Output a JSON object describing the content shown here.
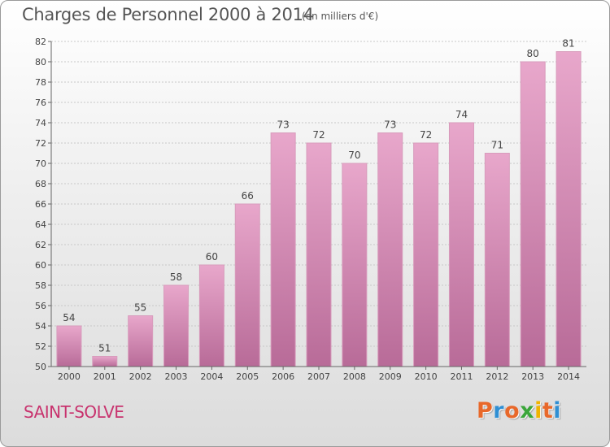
{
  "header": {
    "title": "Charges de Personnel 2000 à 2014",
    "unit": "(en milliers d'€)"
  },
  "footer": {
    "commune": "SAINT-SOLVE",
    "logo": {
      "text": "Proxiti",
      "colors": [
        "#e8682a",
        "#2f8fd3",
        "#e8682a",
        "#3aa63a",
        "#f0b400",
        "#e8682a",
        "#2f8fd3"
      ]
    }
  },
  "chart_data": {
    "type": "bar",
    "categories": [
      "2000",
      "2001",
      "2002",
      "2003",
      "2004",
      "2005",
      "2006",
      "2007",
      "2008",
      "2009",
      "2010",
      "2011",
      "2012",
      "2013",
      "2014"
    ],
    "values": [
      54,
      51,
      55,
      58,
      60,
      66,
      73,
      72,
      70,
      73,
      72,
      74,
      71,
      80,
      81
    ],
    "ylim": [
      50,
      82
    ],
    "yticks": [
      50,
      52,
      54,
      56,
      58,
      60,
      62,
      64,
      66,
      68,
      70,
      72,
      74,
      76,
      78,
      80,
      82
    ],
    "grid": true,
    "bar_color_top": "#e8a7cb",
    "bar_color_bottom": "#b86b98"
  }
}
